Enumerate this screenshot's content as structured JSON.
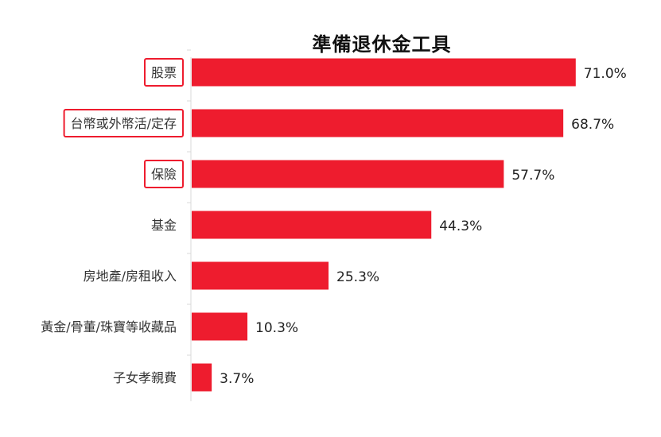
{
  "chart_data": {
    "type": "bar",
    "orientation": "horizontal",
    "title": "準備退休金工具",
    "categories": [
      "股票",
      "台幣或外幣活/定存",
      "保險",
      "基金",
      "房地產/房租收入",
      "黃金/骨董/珠寶等收藏品",
      "子女孝親費"
    ],
    "values": [
      71.0,
      68.7,
      57.7,
      44.3,
      25.3,
      10.3,
      3.7
    ],
    "value_labels": [
      "71.0%",
      "68.7%",
      "57.7%",
      "44.3%",
      "25.3%",
      "10.3%",
      "3.7%"
    ],
    "highlighted_categories": [
      "股票",
      "台幣或外幣活/定存",
      "保險"
    ],
    "xlim": [
      0,
      100
    ],
    "xlabel": "",
    "ylabel": "",
    "grid": false,
    "legend": "none",
    "colors": {
      "bar": "#ee1c2e",
      "highlight_border": "#ee1c2e",
      "axis": "#d9d9d9",
      "label_text": "#333333",
      "value_text": "#222222",
      "title_text": "#111111"
    }
  }
}
